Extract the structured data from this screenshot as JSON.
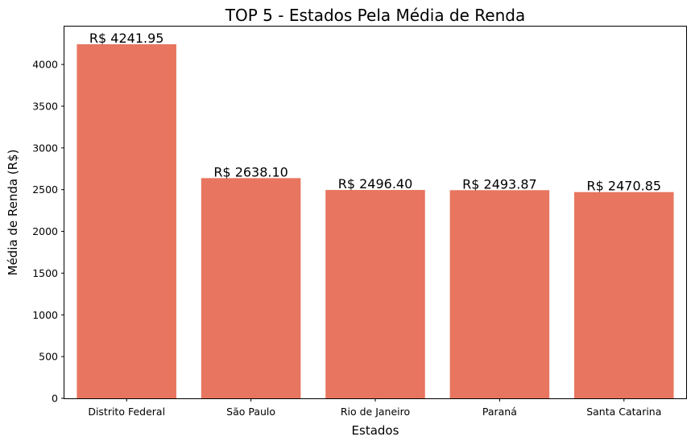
{
  "chart_data": {
    "type": "bar",
    "title": "TOP 5 - Estados Pela Média de Renda",
    "xlabel": "Estados",
    "ylabel": "Média de Renda (R$)",
    "categories": [
      "Distrito Federal",
      "São Paulo",
      "Rio de Janeiro",
      "Paraná",
      "Santa Catarina"
    ],
    "values": [
      4241.95,
      2638.1,
      2496.4,
      2493.87,
      2470.85
    ],
    "data_labels": [
      "R$ 4241.95",
      "R$ 2638.10",
      "R$ 2496.40",
      "R$ 2493.87",
      "R$ 2470.85"
    ],
    "ylim": [
      0,
      4454
    ],
    "yticks": [
      0,
      500,
      1000,
      1500,
      2000,
      2500,
      3000,
      3500,
      4000
    ],
    "ytick_labels": [
      "0",
      "500",
      "1000",
      "1500",
      "2000",
      "2500",
      "3000",
      "3500",
      "4000"
    ],
    "bar_color": "#e8755f",
    "grid": false,
    "legend": "none"
  }
}
